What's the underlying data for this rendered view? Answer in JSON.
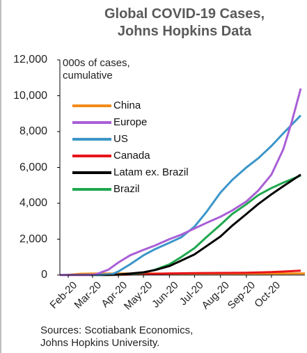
{
  "chart_data": {
    "type": "line",
    "title": [
      "Global COVID-19 Cases,",
      "Johns Hopkins Data"
    ],
    "ylabel": [
      "000s of cases,",
      "cumulative"
    ],
    "xlabel": "",
    "ylim": [
      0,
      12000
    ],
    "yticks": [
      "0",
      "2,000",
      "4,000",
      "6,000",
      "8,000",
      "10,000",
      "12,000"
    ],
    "ytick_values": [
      0,
      2000,
      4000,
      6000,
      8000,
      10000,
      12000
    ],
    "xlim": [
      "2020-01-22",
      "2020-11-10"
    ],
    "xticks": [
      {
        "label": "Feb-20",
        "date": "2020-02-01"
      },
      {
        "label": "Mar-20",
        "date": "2020-03-01"
      },
      {
        "label": "Apr-20",
        "date": "2020-04-01"
      },
      {
        "label": "May-20",
        "date": "2020-05-01"
      },
      {
        "label": "Jun-20",
        "date": "2020-06-01"
      },
      {
        "label": "Jul-20",
        "date": "2020-07-01"
      },
      {
        "label": "Aug-20",
        "date": "2020-08-01"
      },
      {
        "label": "Sep-20",
        "date": "2020-09-01"
      },
      {
        "label": "Oct-20",
        "date": "2020-10-01"
      }
    ],
    "grid": false,
    "legend_position": "upper-left",
    "series": [
      {
        "name": "China",
        "color": "#f28c1a",
        "points": [
          [
            "2020-01-22",
            0
          ],
          [
            "2020-02-01",
            12
          ],
          [
            "2020-02-15",
            68
          ],
          [
            "2020-03-01",
            80
          ],
          [
            "2020-11-10",
            86
          ]
        ]
      },
      {
        "name": "Europe",
        "color": "#a95fd6",
        "points": [
          [
            "2020-01-22",
            0
          ],
          [
            "2020-02-25",
            0
          ],
          [
            "2020-03-05",
            40
          ],
          [
            "2020-03-20",
            300
          ],
          [
            "2020-04-01",
            700
          ],
          [
            "2020-04-15",
            1100
          ],
          [
            "2020-05-01",
            1400
          ],
          [
            "2020-05-15",
            1650
          ],
          [
            "2020-06-01",
            2000
          ],
          [
            "2020-06-15",
            2250
          ],
          [
            "2020-07-01",
            2600
          ],
          [
            "2020-07-15",
            2900
          ],
          [
            "2020-08-01",
            3250
          ],
          [
            "2020-08-15",
            3600
          ],
          [
            "2020-09-01",
            4100
          ],
          [
            "2020-09-15",
            4700
          ],
          [
            "2020-10-01",
            5600
          ],
          [
            "2020-10-15",
            7000
          ],
          [
            "2020-10-25",
            8500
          ],
          [
            "2020-11-05",
            10400
          ]
        ]
      },
      {
        "name": "US",
        "color": "#3c96c8",
        "points": [
          [
            "2020-01-22",
            0
          ],
          [
            "2020-03-10",
            10
          ],
          [
            "2020-03-25",
            60
          ],
          [
            "2020-04-01",
            200
          ],
          [
            "2020-04-15",
            600
          ],
          [
            "2020-05-01",
            1100
          ],
          [
            "2020-05-15",
            1450
          ],
          [
            "2020-06-01",
            1800
          ],
          [
            "2020-06-15",
            2100
          ],
          [
            "2020-07-01",
            2700
          ],
          [
            "2020-07-15",
            3500
          ],
          [
            "2020-08-01",
            4600
          ],
          [
            "2020-08-15",
            5300
          ],
          [
            "2020-09-01",
            6000
          ],
          [
            "2020-09-15",
            6500
          ],
          [
            "2020-10-01",
            7200
          ],
          [
            "2020-10-15",
            7900
          ],
          [
            "2020-11-05",
            8900
          ]
        ]
      },
      {
        "name": "Canada",
        "color": "#e8141a",
        "points": [
          [
            "2020-01-22",
            0
          ],
          [
            "2020-03-15",
            0
          ],
          [
            "2020-04-01",
            8
          ],
          [
            "2020-05-01",
            55
          ],
          [
            "2020-06-01",
            90
          ],
          [
            "2020-07-01",
            105
          ],
          [
            "2020-08-01",
            118
          ],
          [
            "2020-09-01",
            130
          ],
          [
            "2020-10-01",
            165
          ],
          [
            "2020-10-15",
            195
          ],
          [
            "2020-11-05",
            240
          ]
        ]
      },
      {
        "name": "Latam ex. Brazil",
        "color": "#000000",
        "points": [
          [
            "2020-01-22",
            0
          ],
          [
            "2020-03-15",
            5
          ],
          [
            "2020-04-01",
            30
          ],
          [
            "2020-04-15",
            80
          ],
          [
            "2020-05-01",
            150
          ],
          [
            "2020-05-15",
            280
          ],
          [
            "2020-06-01",
            500
          ],
          [
            "2020-06-15",
            800
          ],
          [
            "2020-07-01",
            1150
          ],
          [
            "2020-07-15",
            1600
          ],
          [
            "2020-08-01",
            2150
          ],
          [
            "2020-08-15",
            2750
          ],
          [
            "2020-09-01",
            3400
          ],
          [
            "2020-09-15",
            3950
          ],
          [
            "2020-10-01",
            4500
          ],
          [
            "2020-10-15",
            4950
          ],
          [
            "2020-11-05",
            5600
          ]
        ]
      },
      {
        "name": "Brazil",
        "color": "#1fa84e",
        "points": [
          [
            "2020-01-22",
            0
          ],
          [
            "2020-03-15",
            5
          ],
          [
            "2020-04-01",
            20
          ],
          [
            "2020-04-15",
            60
          ],
          [
            "2020-05-01",
            130
          ],
          [
            "2020-05-15",
            300
          ],
          [
            "2020-06-01",
            600
          ],
          [
            "2020-06-15",
            1000
          ],
          [
            "2020-07-01",
            1500
          ],
          [
            "2020-07-15",
            2100
          ],
          [
            "2020-08-01",
            2800
          ],
          [
            "2020-08-15",
            3400
          ],
          [
            "2020-09-01",
            3950
          ],
          [
            "2020-09-15",
            4450
          ],
          [
            "2020-10-01",
            4850
          ],
          [
            "2020-10-15",
            5150
          ],
          [
            "2020-11-05",
            5550
          ]
        ]
      }
    ]
  },
  "footer": {
    "sources_line1": "Sources: Scotiabank Economics,",
    "sources_line2": "Johns Hopkins University."
  }
}
